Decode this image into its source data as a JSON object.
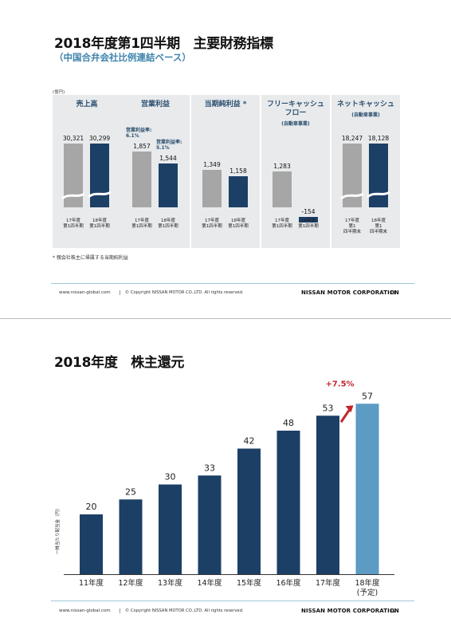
{
  "slide1": {
    "title": "2018年度第1四半期　主要財務指標",
    "subtitle": "（中国合弁会社比例連結ベース）",
    "unit": "(億円)",
    "footnote": "* 親会社株主に帰属する当期純利益",
    "panels": [
      {
        "title": "売上高",
        "sub": "",
        "prev_value": "30,321",
        "cur_value": "30,299",
        "prev_label": "17年度\n第1四半期",
        "cur_label": "18年度\n第1四半期",
        "prev_margin": "",
        "cur_margin": ""
      },
      {
        "title": "営業利益",
        "sub": "",
        "prev_value": "1,857",
        "cur_value": "1,544",
        "prev_label": "17年度\n第1四半期",
        "cur_label": "18年度\n第1四半期",
        "prev_margin": "営業利益率:\n6.1%",
        "cur_margin": "営業利益率:\n5.1%"
      },
      {
        "title": "当期純利益 *",
        "sub": "",
        "prev_value": "1,349",
        "cur_value": "1,158",
        "prev_label": "17年度\n第1四半期",
        "cur_label": "18年度\n第1四半期",
        "prev_margin": "",
        "cur_margin": ""
      },
      {
        "title": "フリーキャッシュ\nフロー",
        "sub": "(自動車事業)",
        "prev_value": "1,283",
        "cur_value": "-154",
        "prev_label": "17年度\n第1四半期",
        "cur_label": "18年度\n第1四半期",
        "prev_margin": "",
        "cur_margin": ""
      },
      {
        "title": "ネットキャッシュ",
        "sub": "(自動車事業)",
        "prev_value": "18,247",
        "cur_value": "18,128",
        "prev_label": "17年度\n第1\n四半期末",
        "cur_label": "18年度\n第1\n四半期末",
        "prev_margin": "",
        "cur_margin": ""
      }
    ],
    "footer": {
      "url": "www.nissan-global.com",
      "copyright": "© Copyright NISSAN MOTOR CO.,LTD. All rights reserved.",
      "corp": "NISSAN MOTOR CORPORATION",
      "page": "11"
    }
  },
  "slide2": {
    "title": "2018年度　株主還元",
    "annotation": "+7.5%",
    "footer": {
      "url": "www.nissan-global.com",
      "copyright": "© Copyright NISSAN MOTOR CO.,LTD. All rights reserved.",
      "corp": "NISSAN MOTOR CORPORATION",
      "page": "12"
    }
  },
  "chart_data": {
    "type": "bar",
    "title": "",
    "xlabel": "",
    "ylabel": "一株当たり配当金（円）",
    "categories": [
      "11年度",
      "12年度",
      "13年度",
      "14年度",
      "15年度",
      "16年度",
      "17年度",
      "18年度\n(予定)"
    ],
    "values": [
      20,
      25,
      30,
      33,
      42,
      48,
      53,
      57
    ],
    "ylim": [
      0,
      60
    ],
    "grid": false,
    "colors": {
      "actual": "#1c3f66",
      "forecast": "#5b9bc4",
      "arrow": "#c0282d"
    }
  }
}
